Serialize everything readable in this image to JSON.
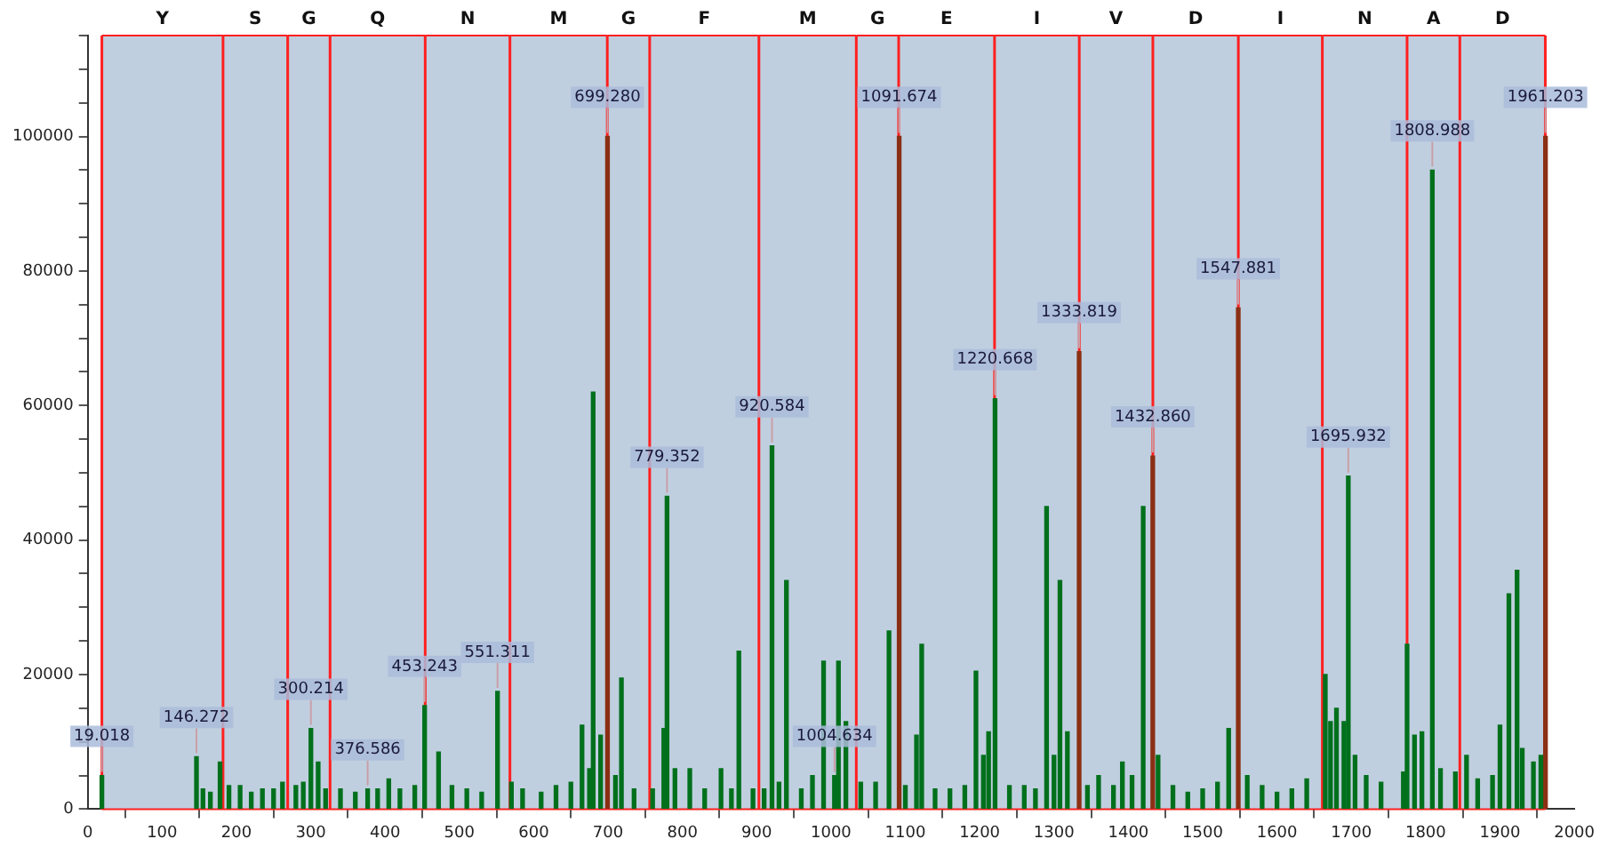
{
  "chart_data": {
    "type": "bar",
    "xlim": [
      0,
      2000
    ],
    "ylim": [
      0,
      115000
    ],
    "xticks": [
      0,
      100,
      200,
      300,
      400,
      500,
      600,
      700,
      800,
      900,
      1000,
      1100,
      1200,
      1300,
      1400,
      1500,
      1600,
      1700,
      1800,
      1900,
      2000
    ],
    "yticks": [
      0,
      {
        "value": 5000,
        "label": null
      },
      {
        "value": 10000,
        "label": null
      },
      {
        "value": 15000,
        "label": null
      },
      20000,
      {
        "value": 25000,
        "label": null
      },
      {
        "value": 30000,
        "label": null
      },
      {
        "value": 35000,
        "label": null
      },
      40000,
      {
        "value": 45000,
        "label": null
      },
      {
        "value": 50000,
        "label": null
      },
      {
        "value": 55000,
        "label": null
      },
      60000,
      {
        "value": 65000,
        "label": null
      },
      {
        "value": 70000,
        "label": null
      },
      {
        "value": 75000,
        "label": null
      },
      80000,
      {
        "value": 85000,
        "label": null
      },
      {
        "value": 90000,
        "label": null
      },
      {
        "value": 95000,
        "label": null
      },
      100000,
      {
        "value": 105000,
        "label": null
      },
      {
        "value": 110000,
        "label": null
      },
      {
        "value": 115000,
        "label": null
      }
    ],
    "grid": false,
    "legend": false,
    "series": [
      {
        "color": "#00701c",
        "x": [
          19.018,
          146.272,
          155,
          165,
          178,
          190,
          205,
          220,
          235,
          250,
          262,
          280,
          290,
          300.214,
          310,
          320,
          340,
          360,
          376.586,
          390,
          405,
          420,
          440,
          453.243,
          472,
          490,
          510,
          530,
          551.311,
          570,
          585,
          610,
          630,
          650,
          665,
          675,
          680,
          690,
          710,
          718,
          735,
          760,
          775,
          779.352,
          790,
          810,
          830,
          852,
          866,
          876,
          895,
          910,
          920.584,
          930,
          940,
          960,
          975,
          990,
          1004.634,
          1010,
          1020,
          1040,
          1060,
          1078,
          1100,
          1115,
          1122,
          1140,
          1160,
          1180,
          1195,
          1205,
          1212,
          1220.668,
          1240,
          1260,
          1275,
          1290,
          1300,
          1308,
          1318,
          1345,
          1360,
          1380,
          1392,
          1405,
          1420,
          1440,
          1460,
          1480,
          1500,
          1520,
          1535,
          1560,
          1580,
          1600,
          1620,
          1640,
          1665,
          1672,
          1680,
          1690,
          1695.932,
          1705,
          1720,
          1740,
          1770,
          1775,
          1785,
          1795,
          1808.988,
          1820,
          1840,
          1855,
          1870,
          1890,
          1900,
          1912,
          1923,
          1930,
          1945,
          1955
        ],
        "values": [
          5000,
          7800,
          3000,
          2500,
          7000,
          3500,
          3500,
          2500,
          3000,
          3000,
          4000,
          3500,
          4000,
          12000,
          7000,
          3000,
          3000,
          2500,
          3000,
          3000,
          4500,
          3000,
          3500,
          15400,
          8500,
          3500,
          3000,
          2500,
          17500,
          4000,
          3000,
          2500,
          3500,
          4000,
          12500,
          6000,
          62000,
          11000,
          5000,
          19500,
          3000,
          3000,
          12000,
          46500,
          6000,
          6000,
          3000,
          6000,
          3000,
          23500,
          3000,
          3000,
          54000,
          4000,
          34000,
          3000,
          5000,
          22000,
          5000,
          22000,
          13000,
          4000,
          4000,
          26500,
          3500,
          11000,
          24500,
          3000,
          3000,
          3500,
          20500,
          8000,
          11500,
          61000,
          3500,
          3500,
          3000,
          45000,
          8000,
          34000,
          11500,
          3500,
          5000,
          3500,
          7000,
          5000,
          45000,
          8000,
          3500,
          2500,
          3000,
          4000,
          12000,
          5000,
          3500,
          2500,
          3000,
          4500,
          20000,
          13000,
          15000,
          13000,
          49500,
          8000,
          5000,
          4000,
          5500,
          24500,
          11000,
          11500,
          95000,
          6000,
          5500,
          8000,
          4500,
          5000,
          12500,
          32000,
          35500,
          9000,
          7000,
          8000
        ]
      },
      {
        "color": "#8b2f14",
        "x": [
          699.28,
          1091.674,
          1333.819,
          1432.86,
          1547.881,
          1961.203
        ],
        "values": [
          100000,
          100000,
          68000,
          52500,
          74500,
          100000
        ]
      }
    ],
    "bands": [
      {
        "axis": "x",
        "from": 19,
        "to": 182,
        "label": "Y",
        "color": "#c0cfdf"
      },
      {
        "axis": "x",
        "from": 182,
        "to": 269,
        "label": "S",
        "color": "#c0cfdf"
      },
      {
        "axis": "x",
        "from": 269,
        "to": 326,
        "label": "G",
        "color": "#c0cfdf"
      },
      {
        "axis": "x",
        "from": 326,
        "to": 454,
        "label": "Q",
        "color": "#c0cfdf"
      },
      {
        "axis": "x",
        "from": 454,
        "to": 568,
        "label": "N",
        "color": "#c0cfdf"
      },
      {
        "axis": "x",
        "from": 568,
        "to": 699,
        "label": "M",
        "color": "#c0cfdf"
      },
      {
        "axis": "x",
        "from": 699,
        "to": 756,
        "label": "G",
        "color": "#c0cfdf"
      },
      {
        "axis": "x",
        "from": 756,
        "to": 903,
        "label": "F",
        "color": "#c0cfdf"
      },
      {
        "axis": "x",
        "from": 903,
        "to": 1034,
        "label": "M",
        "color": "#c0cfdf"
      },
      {
        "axis": "x",
        "from": 1034,
        "to": 1091,
        "label": "G",
        "color": "#c0cfdf"
      },
      {
        "axis": "x",
        "from": 1091,
        "to": 1220,
        "label": "E",
        "color": "#c0cfdf"
      },
      {
        "axis": "x",
        "from": 1220,
        "to": 1334,
        "label": "I",
        "color": "#c0cfdf"
      },
      {
        "axis": "x",
        "from": 1334,
        "to": 1433,
        "label": "V",
        "color": "#c0cfdf"
      },
      {
        "axis": "x",
        "from": 1433,
        "to": 1548,
        "label": "D",
        "color": "#c0cfdf"
      },
      {
        "axis": "x",
        "from": 1548,
        "to": 1661,
        "label": "I",
        "color": "#c0cfdf"
      },
      {
        "axis": "x",
        "from": 1661,
        "to": 1775,
        "label": "N",
        "color": "#c0cfdf"
      },
      {
        "axis": "x",
        "from": 1775,
        "to": 1846,
        "label": "A",
        "color": "#c0cfdf"
      },
      {
        "axis": "x",
        "from": 1846,
        "to": 1961,
        "label": "D",
        "color": "#c0cfdf"
      }
    ],
    "ref_lines": [
      {
        "axis": "x",
        "value": 19,
        "color": "#ff2020"
      },
      {
        "axis": "x",
        "value": 182,
        "color": "#ff2020"
      },
      {
        "axis": "x",
        "value": 269,
        "color": "#ff2020"
      },
      {
        "axis": "x",
        "value": 326,
        "color": "#ff2020"
      },
      {
        "axis": "x",
        "value": 454,
        "color": "#ff2020"
      },
      {
        "axis": "x",
        "value": 568,
        "color": "#ff2020"
      },
      {
        "axis": "x",
        "value": 699,
        "color": "#ff2020"
      },
      {
        "axis": "x",
        "value": 756,
        "color": "#ff2020"
      },
      {
        "axis": "x",
        "value": 903,
        "color": "#ff2020"
      },
      {
        "axis": "x",
        "value": 1034,
        "color": "#ff2020"
      },
      {
        "axis": "x",
        "value": 1091,
        "color": "#ff2020"
      },
      {
        "axis": "x",
        "value": 1220,
        "color": "#ff2020"
      },
      {
        "axis": "x",
        "value": 1334,
        "color": "#ff2020"
      },
      {
        "axis": "x",
        "value": 1433,
        "color": "#ff2020"
      },
      {
        "axis": "x",
        "value": 1548,
        "color": "#ff2020"
      },
      {
        "axis": "x",
        "value": 1661,
        "color": "#ff2020"
      },
      {
        "axis": "x",
        "value": 1775,
        "color": "#ff2020"
      },
      {
        "axis": "x",
        "value": 1846,
        "color": "#ff2020"
      },
      {
        "axis": "x",
        "value": 1961,
        "color": "#ff2020"
      }
    ],
    "annotations": [
      {
        "text": "19.018",
        "x": 19.018,
        "y": 5000
      },
      {
        "text": "146.272",
        "x": 146.272,
        "y": 7800
      },
      {
        "text": "300.214",
        "x": 300.214,
        "y": 12000
      },
      {
        "text": "376.586",
        "x": 376.586,
        "y": 3000
      },
      {
        "text": "453.243",
        "x": 453.243,
        "y": 15400
      },
      {
        "text": "551.311",
        "x": 551.311,
        "y": 17500
      },
      {
        "text": "699.280",
        "x": 699.28,
        "y": 100000
      },
      {
        "text": "779.352",
        "x": 779.352,
        "y": 46500
      },
      {
        "text": "920.584",
        "x": 920.584,
        "y": 54000
      },
      {
        "text": "1004.634",
        "x": 1004.634,
        "y": 5000
      },
      {
        "text": "1091.674",
        "x": 1091.674,
        "y": 100000
      },
      {
        "text": "1220.668",
        "x": 1220.668,
        "y": 61000
      },
      {
        "text": "1333.819",
        "x": 1333.819,
        "y": 68000
      },
      {
        "text": "1432.860",
        "x": 1432.86,
        "y": 52500
      },
      {
        "text": "1547.881",
        "x": 1547.881,
        "y": 74500
      },
      {
        "text": "1695.932",
        "x": 1695.932,
        "y": 49500
      },
      {
        "text": "1808.988",
        "x": 1808.988,
        "y": 95000
      },
      {
        "text": "1961.203",
        "x": 1961.203,
        "y": 100000
      }
    ]
  }
}
